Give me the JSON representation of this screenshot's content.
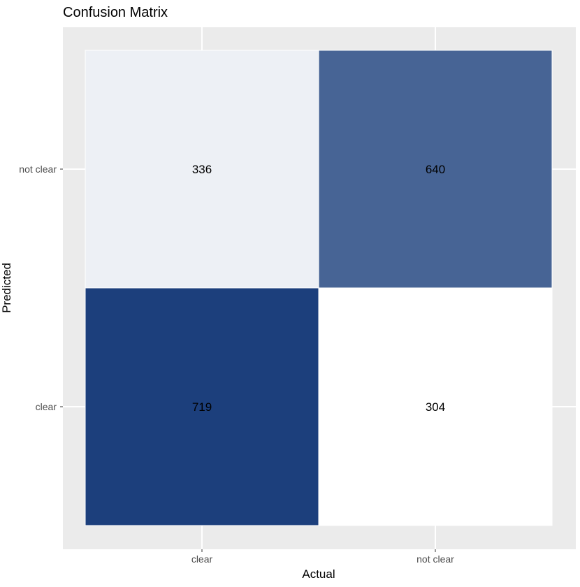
{
  "chart_data": {
    "type": "heatmap",
    "title": "Confusion Matrix",
    "xlabel": "Actual",
    "ylabel": "Predicted",
    "x_categories": [
      "clear",
      "not clear"
    ],
    "y_categories": [
      "clear",
      "not clear"
    ],
    "cells": [
      {
        "x": "clear",
        "y": "not clear",
        "value": 336
      },
      {
        "x": "not clear",
        "y": "not clear",
        "value": 640
      },
      {
        "x": "clear",
        "y": "clear",
        "value": 719
      },
      {
        "x": "not clear",
        "y": "clear",
        "value": 304
      }
    ],
    "color_low": "#ffffff",
    "color_high": "#1c3f7c",
    "panel_background": "#ebebeb",
    "gridline_color": "#ffffff",
    "legend": "none"
  }
}
